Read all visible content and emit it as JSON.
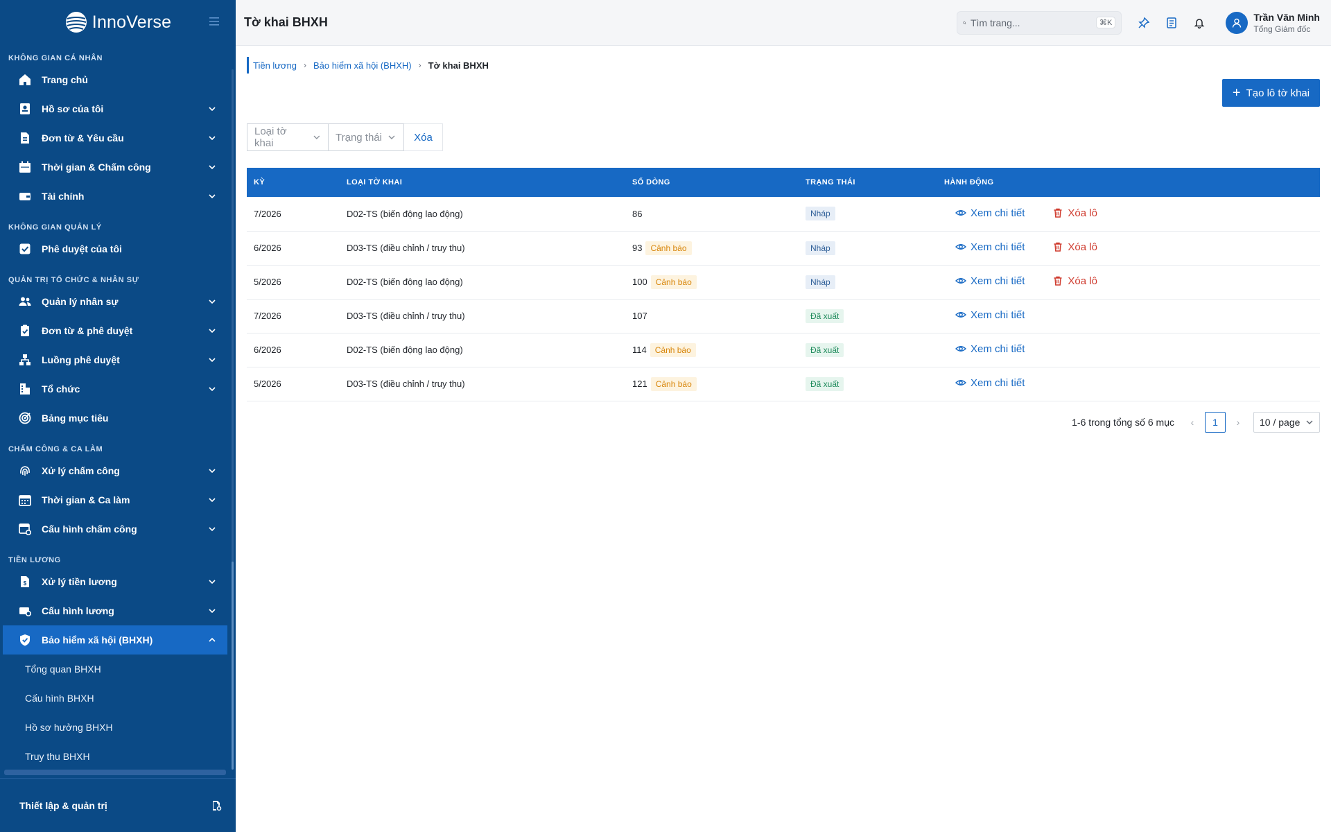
{
  "app": {
    "name": "InnoVerse"
  },
  "sidebar": {
    "sections": [
      {
        "title": "KHÔNG GIAN CÁ NHÂN",
        "items": [
          {
            "label": "Trang chủ",
            "icon": "home-icon",
            "expandable": false
          },
          {
            "label": "Hồ sơ của tôi",
            "icon": "profile-icon",
            "expandable": true
          },
          {
            "label": "Đơn từ & Yêu cầu",
            "icon": "document-icon",
            "expandable": true
          },
          {
            "label": "Thời gian & Chấm công",
            "icon": "calendar-icon",
            "expandable": true
          },
          {
            "label": "Tài chính",
            "icon": "wallet-icon",
            "expandable": true
          }
        ]
      },
      {
        "title": "KHÔNG GIAN QUẢN LÝ",
        "items": [
          {
            "label": "Phê duyệt của tôi",
            "icon": "check-square-icon",
            "expandable": false
          }
        ]
      },
      {
        "title": "QUẢN TRỊ TỔ CHỨC & NHÂN SỰ",
        "items": [
          {
            "label": "Quản lý nhân sự",
            "icon": "users-icon",
            "expandable": true
          },
          {
            "label": "Đơn từ & phê duyệt",
            "icon": "clipboard-check-icon",
            "expandable": true
          },
          {
            "label": "Luồng phê duyệt",
            "icon": "flow-icon",
            "expandable": true
          },
          {
            "label": "Tổ chức",
            "icon": "building-icon",
            "expandable": true
          },
          {
            "label": "Bảng mục tiêu",
            "icon": "target-icon",
            "expandable": false
          }
        ]
      },
      {
        "title": "CHẤM CÔNG & CA LÀM",
        "items": [
          {
            "label": "Xử lý chấm công",
            "icon": "fingerprint-icon",
            "expandable": true
          },
          {
            "label": "Thời gian & Ca làm",
            "icon": "calendar-grid-icon",
            "expandable": true
          },
          {
            "label": "Cấu hình chấm công",
            "icon": "calendar-settings-icon",
            "expandable": true
          }
        ]
      },
      {
        "title": "TIỀN LƯƠNG",
        "items": [
          {
            "label": "Xử lý tiền lương",
            "icon": "payroll-icon",
            "expandable": true
          },
          {
            "label": "Cấu hình lương",
            "icon": "money-settings-icon",
            "expandable": true
          },
          {
            "label": "Bảo hiểm xã hội (BHXH)",
            "icon": "shield-check-icon",
            "expandable": true,
            "active": true,
            "children": [
              "Tổng quan BHXH",
              "Cấu hình BHXH",
              "Hồ sơ hưởng BHXH",
              "Truy thu BHXH"
            ]
          }
        ]
      }
    ],
    "footer": {
      "label": "Thiết lập & quản trị",
      "icon": "admin-settings-icon"
    }
  },
  "header": {
    "title": "Tờ khai BHXH",
    "search": {
      "placeholder": "Tìm trang...",
      "shortcut": "⌘K"
    },
    "user": {
      "name": "Trần Văn Minh",
      "role": "Tổng Giám đốc"
    }
  },
  "breadcrumb": [
    "Tiền lương",
    "Bảo hiểm xã hội (BHXH)",
    "Tờ khai BHXH"
  ],
  "actions": {
    "create_label": "Tạo lô tờ khai"
  },
  "filters": {
    "type_placeholder": "Loại tờ khai",
    "status_placeholder": "Trạng thái",
    "clear_label": "Xóa"
  },
  "table": {
    "columns": [
      "KỲ",
      "LOẠI TỜ KHAI",
      "SỐ DÒNG",
      "TRẠNG THÁI",
      "HÀNH ĐỘNG"
    ],
    "view_label": "Xem chi tiết",
    "delete_label": "Xóa lô",
    "warning_label": "Cảnh báo",
    "rows": [
      {
        "period": "7/2026",
        "type": "D02-TS (biến động lao động)",
        "lines": "86",
        "warning": false,
        "status": "Nháp",
        "status_kind": "draft",
        "deletable": true
      },
      {
        "period": "6/2026",
        "type": "D03-TS (điều chỉnh / truy thu)",
        "lines": "93",
        "warning": true,
        "status": "Nháp",
        "status_kind": "draft",
        "deletable": true
      },
      {
        "period": "5/2026",
        "type": "D02-TS (biến động lao động)",
        "lines": "100",
        "warning": true,
        "status": "Nháp",
        "status_kind": "draft",
        "deletable": true
      },
      {
        "period": "7/2026",
        "type": "D03-TS (điều chỉnh / truy thu)",
        "lines": "107",
        "warning": false,
        "status": "Đã xuất",
        "status_kind": "exported",
        "deletable": false
      },
      {
        "period": "6/2026",
        "type": "D02-TS (biến động lao động)",
        "lines": "114",
        "warning": true,
        "status": "Đã xuất",
        "status_kind": "exported",
        "deletable": false
      },
      {
        "period": "5/2026",
        "type": "D03-TS (điều chỉnh / truy thu)",
        "lines": "121",
        "warning": true,
        "status": "Đã xuất",
        "status_kind": "exported",
        "deletable": false
      }
    ]
  },
  "pagination": {
    "summary": "1-6 trong tổng số 6 mục",
    "current_page": "1",
    "page_size": "10 / page"
  },
  "colors": {
    "sidebar_bg": "#0b4a86",
    "primary": "#1769c4",
    "danger": "#cf3b2e",
    "warning": "#d8860b",
    "success": "#1e8a5b"
  }
}
